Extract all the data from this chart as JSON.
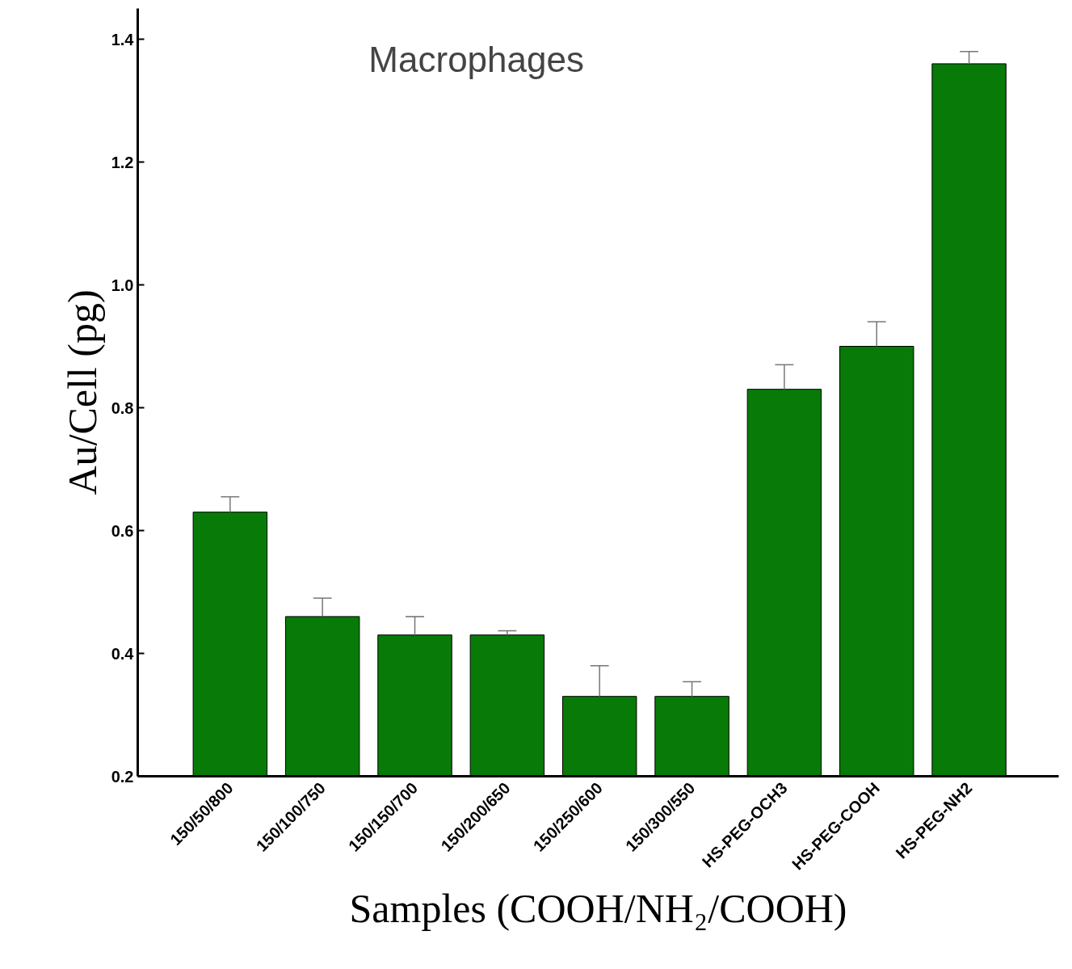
{
  "chart_data": {
    "type": "bar",
    "title": "Macrophages",
    "xlabel": "Samples (COOH/NH₂/COOH)",
    "ylabel": "Au/Cell (pg)",
    "categories": [
      "150/50/800",
      "150/100/750",
      "150/150/700",
      "150/200/650",
      "150/250/600",
      "150/300/550",
      "HS-PEG-OCH3",
      "HS-PEG-COOH",
      "HS-PEG-NH2"
    ],
    "values": [
      0.63,
      0.46,
      0.43,
      0.43,
      0.33,
      0.33,
      0.83,
      0.9,
      1.36
    ],
    "errors": [
      [
        0.63,
        0.655
      ],
      [
        0.46,
        0.49
      ],
      [
        0.43,
        0.46
      ],
      [
        0.43,
        0.437
      ],
      [
        0.33,
        0.38
      ],
      [
        0.33,
        0.354
      ],
      [
        0.83,
        0.87
      ],
      [
        0.9,
        0.94
      ],
      [
        1.36,
        1.38
      ]
    ],
    "color": "#087a08",
    "ylim": [
      0.2,
      1.45
    ],
    "yticks": [
      0.2,
      0.4,
      0.6,
      0.8,
      {
        "value": 1,
        "label": "1.0"
      },
      1.2,
      1.4
    ],
    "grid": false
  }
}
